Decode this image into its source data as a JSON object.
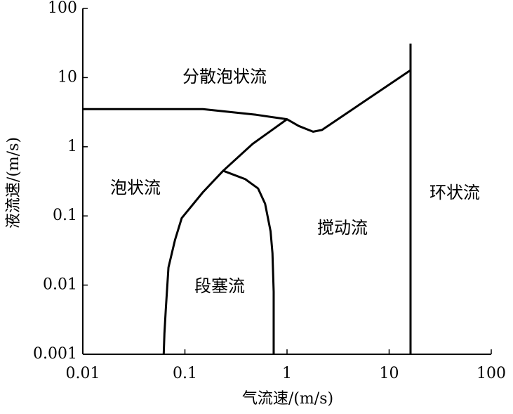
{
  "chart_data": {
    "type": "line",
    "xlog": true,
    "ylog": true,
    "xlabel": "气流速/(m/s)",
    "ylabel": "液流速/(m/s)",
    "xlim": [
      0.01,
      100
    ],
    "xticks": [
      0.01,
      0.1,
      1,
      10,
      100
    ],
    "ylim": [
      0.001,
      100
    ],
    "yticks": [
      0.001,
      0.01,
      0.1,
      1,
      10,
      100
    ],
    "series": [
      {
        "color": "#000000",
        "x": [
          0.01,
          0.15,
          0.5,
          1,
          1.3,
          1.8,
          2.2,
          16.2
        ],
        "values": [
          3.5,
          3.5,
          2.9,
          2.5,
          2.0,
          1.65,
          1.75,
          12.8
        ]
      },
      {
        "color": "#000000",
        "x": [
          0.062,
          0.063,
          0.065,
          0.069,
          0.08,
          0.093,
          0.15,
          0.237,
          0.46,
          1
        ],
        "values": [
          0.001,
          0.002,
          0.0045,
          0.018,
          0.045,
          0.093,
          0.22,
          0.45,
          1.1,
          2.5
        ]
      },
      {
        "color": "#000000",
        "x": [
          0.237,
          0.39,
          0.52,
          0.61,
          0.69,
          0.72,
          0.74,
          0.74
        ],
        "values": [
          0.45,
          0.34,
          0.25,
          0.15,
          0.06,
          0.029,
          0.008,
          0.001
        ]
      },
      {
        "color": "#000000",
        "x": [
          16.2,
          16.2
        ],
        "values": [
          0.001,
          31
        ]
      }
    ],
    "annotations": [
      "分散泡状流",
      "泡状流",
      "段塞流",
      "搅动流",
      "环状流"
    ]
  }
}
